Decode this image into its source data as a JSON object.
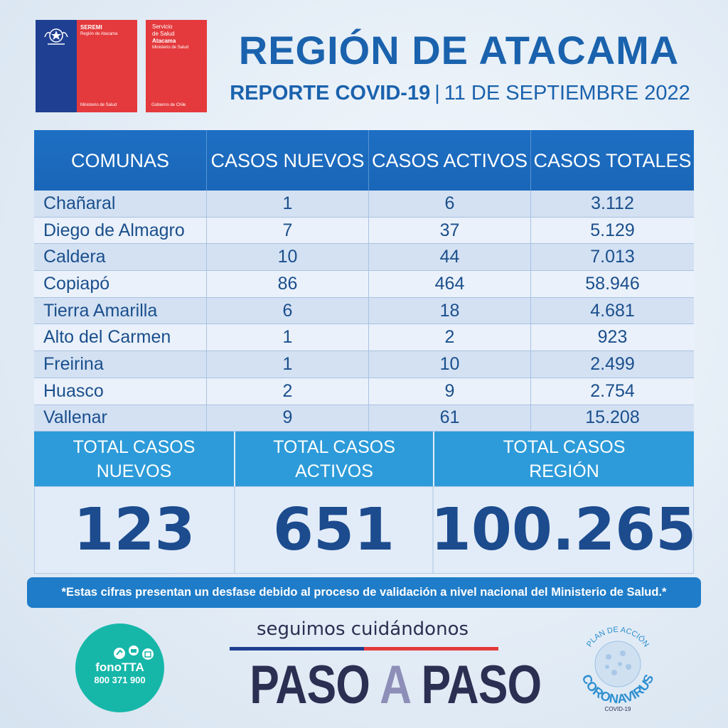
{
  "logos": {
    "seremi": {
      "line1": "SEREMI",
      "line2": "Región de Atacama",
      "bottom": "Ministerio de Salud"
    },
    "servicio": {
      "line1": "Servicio",
      "line2": "de Salud",
      "line3": "Atacama",
      "line4": "Ministerio de Salud",
      "bottom": "Gobierno de Chile"
    }
  },
  "header": {
    "title": "REGIÓN DE ATACAMA",
    "report": "REPORTE COVID-19",
    "separator": "|",
    "date": "11 DE SEPTIEMBRE 2022"
  },
  "table": {
    "columns": [
      "COMUNAS",
      "CASOS NUEVOS",
      "CASOS ACTIVOS",
      "CASOS TOTALES"
    ],
    "rows": [
      {
        "comuna": "Chañaral",
        "nuevos": "1",
        "activos": "6",
        "totales": "3.112"
      },
      {
        "comuna": "Diego de Almagro",
        "nuevos": "7",
        "activos": "37",
        "totales": "5.129"
      },
      {
        "comuna": "Caldera",
        "nuevos": "10",
        "activos": "44",
        "totales": "7.013"
      },
      {
        "comuna": "Copiapó",
        "nuevos": "86",
        "activos": "464",
        "totales": "58.946"
      },
      {
        "comuna": "Tierra Amarilla",
        "nuevos": "6",
        "activos": "18",
        "totales": "4.681"
      },
      {
        "comuna": "Alto del Carmen",
        "nuevos": "1",
        "activos": "2",
        "totales": "923"
      },
      {
        "comuna": "Freirina",
        "nuevos": "1",
        "activos": "10",
        "totales": "2.499"
      },
      {
        "comuna": "Huasco",
        "nuevos": "2",
        "activos": "9",
        "totales": "2.754"
      },
      {
        "comuna": "Vallenar",
        "nuevos": "9",
        "activos": "61",
        "totales": "15.208"
      }
    ]
  },
  "totals": {
    "nuevos_label_1": "TOTAL CASOS",
    "nuevos_label_2": "NUEVOS",
    "nuevos_value": "123",
    "activos_label_1": "TOTAL CASOS",
    "activos_label_2": "ACTIVOS",
    "activos_value": "651",
    "region_label_1": "TOTAL CASOS",
    "region_label_2": "REGIÓN",
    "region_value": "100.265"
  },
  "note": "*Estas cifras presentan un desfase debido al proceso de validación a nivel nacional del Ministerio de Salud.*",
  "footer": {
    "fono_name": "fonoTTA",
    "fono_number": "800 371 900",
    "slogan": "seguimos cuidándonos",
    "paso_1": "PASO",
    "paso_2": "A",
    "paso_3": "PASO",
    "plan": "PLAN DE ACCIÓN",
    "corona": "CORONAVIRUS",
    "covid": "COVID-19"
  },
  "colors": {
    "brand_blue": "#1a62ad",
    "header_blue": "#1d6fc4",
    "total_blue": "#2d9bd9",
    "teal": "#16b7a9",
    "red": "#e43a3d"
  }
}
